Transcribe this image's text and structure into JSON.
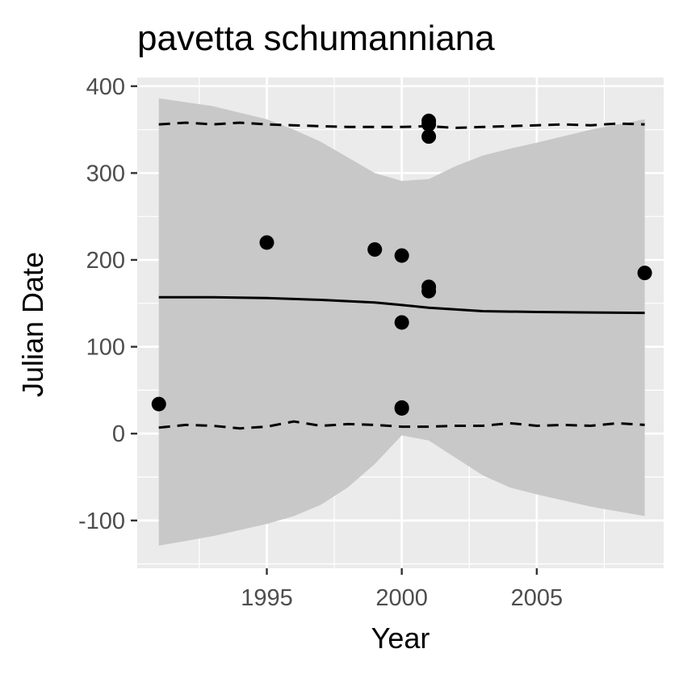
{
  "chart_data": {
    "type": "scatter",
    "title": "pavetta schumanniana",
    "xlabel": "Year",
    "ylabel": "Julian Date",
    "xlim": [
      1990.2,
      2009.7
    ],
    "ylim": [
      -155,
      410
    ],
    "x_ticks": [
      1995,
      2000,
      2005
    ],
    "y_ticks": [
      -100,
      0,
      100,
      200,
      300,
      400
    ],
    "x_tick_labels": [
      "1995",
      "2000",
      "2005"
    ],
    "y_tick_labels": [
      "-100",
      "0",
      "100",
      "200",
      "300",
      "400"
    ],
    "grid": true,
    "legend": "none",
    "colors": {
      "panel": "#ebebeb",
      "grid_major": "#ffffff",
      "ribbon": "#c8c8c8",
      "points": "#000000",
      "fit_line": "#000000"
    },
    "points": [
      {
        "x": 1991,
        "y": 34
      },
      {
        "x": 1995,
        "y": 220
      },
      {
        "x": 1999,
        "y": 212
      },
      {
        "x": 2000,
        "y": 205
      },
      {
        "x": 2000,
        "y": 128
      },
      {
        "x": 2000,
        "y": 29
      },
      {
        "x": 2000,
        "y": 30
      },
      {
        "x": 2001,
        "y": 360
      },
      {
        "x": 2001,
        "y": 356
      },
      {
        "x": 2001,
        "y": 342
      },
      {
        "x": 2001,
        "y": 169
      },
      {
        "x": 2001,
        "y": 164
      },
      {
        "x": 2009,
        "y": 185
      }
    ],
    "fit_line": {
      "x": [
        1991,
        1993,
        1995,
        1997,
        1999,
        2000,
        2001,
        2003,
        2005,
        2007,
        2009
      ],
      "y": [
        157,
        157,
        156,
        154,
        151,
        148,
        145,
        141,
        140,
        139.5,
        139
      ]
    },
    "ribbon": {
      "x": [
        1991,
        1993,
        1995,
        1996,
        1997,
        1998,
        1999,
        2000,
        2001,
        2002,
        2003,
        2004,
        2005,
        2007,
        2009
      ],
      "upper": [
        386,
        377,
        362,
        350,
        336,
        318,
        300,
        291,
        293,
        308,
        320,
        328,
        335,
        350,
        362
      ],
      "lower": [
        -129,
        -118,
        -104,
        -95,
        -82,
        -62,
        -35,
        -2,
        -8,
        -28,
        -48,
        -62,
        -70,
        -84,
        -95
      ]
    },
    "quantile_upper": {
      "x": [
        1991,
        1992,
        1993,
        1994,
        1995,
        1996,
        1997,
        1998,
        1999,
        2000,
        2001,
        2002,
        2003,
        2004,
        2005,
        2006,
        2007,
        2008,
        2009
      ],
      "y": [
        356,
        358,
        356,
        358,
        356,
        355,
        354,
        353,
        353,
        353,
        354,
        352,
        353,
        354,
        355,
        356,
        355,
        357,
        356
      ]
    },
    "quantile_lower": {
      "x": [
        1991,
        1992,
        1993,
        1994,
        1995,
        1996,
        1997,
        1998,
        1999,
        2000,
        2001,
        2002,
        2003,
        2004,
        2005,
        2006,
        2007,
        2008,
        2009
      ],
      "y": [
        7,
        10,
        9,
        6,
        8,
        14,
        9,
        11,
        10,
        8,
        8,
        9,
        9,
        12,
        9,
        10,
        9,
        12,
        10
      ]
    }
  }
}
